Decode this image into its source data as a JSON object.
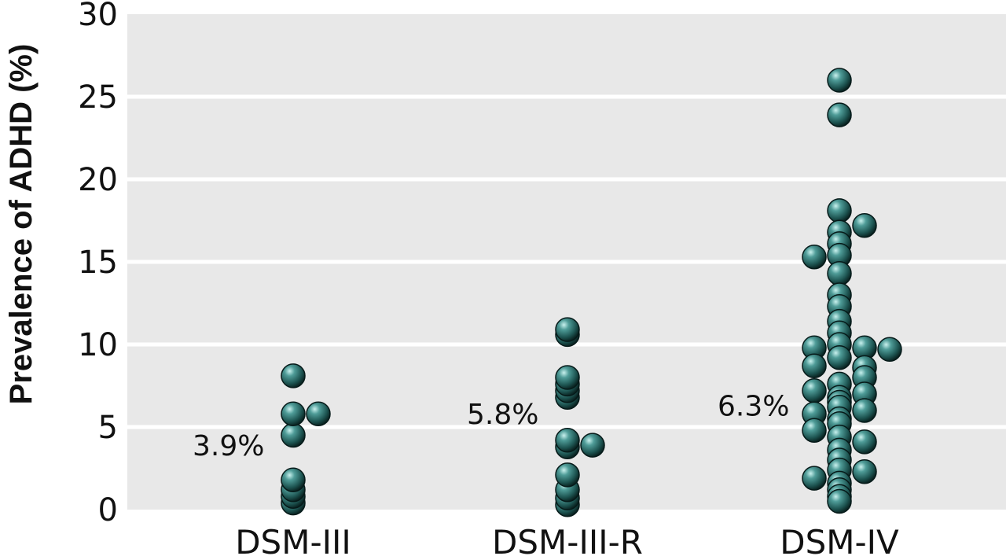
{
  "chart_data": {
    "type": "scatter",
    "title": "",
    "xlabel": "",
    "ylabel": "Prevalence of ADHD (%)",
    "ylim": [
      0,
      30
    ],
    "yticks": [
      0,
      5,
      10,
      15,
      20,
      25,
      30
    ],
    "grid": true,
    "categories": [
      "DSM-III",
      "DSM-III-R",
      "DSM-IV"
    ],
    "series": [
      {
        "values": [
          0.4,
          0.8,
          1.2,
          1.8,
          4.5,
          5.8,
          5.8,
          8.1
        ],
        "offsets": [
          0,
          0,
          0,
          0,
          0,
          0,
          1,
          0
        ]
      },
      {
        "values": [
          0.3,
          0.7,
          1.2,
          2.1,
          3.8,
          4.2,
          3.9,
          6.8,
          7.2,
          7.6,
          8.0,
          10.6,
          10.9
        ],
        "offsets": [
          0,
          0,
          0,
          0,
          0,
          0,
          1,
          0,
          0,
          0,
          0,
          0,
          0
        ]
      },
      {
        "values": [
          26.0,
          23.9,
          18.1,
          17.2,
          16.8,
          16.1,
          15.4,
          15.3,
          14.3,
          13.0,
          12.3,
          11.4,
          10.7,
          10.0,
          9.8,
          9.8,
          9.7,
          9.2,
          8.7,
          8.6,
          8.0,
          7.6,
          7.2,
          7.0,
          6.8,
          6.5,
          6.2,
          6.0,
          5.8,
          5.5,
          5.2,
          4.8,
          4.4,
          4.1,
          3.6,
          3.0,
          2.4,
          2.3,
          1.9,
          1.6,
          1.2,
          0.8,
          0.5
        ],
        "offsets": [
          0,
          0,
          0,
          1,
          0,
          0,
          0,
          -1,
          0,
          0,
          0,
          0,
          0,
          0,
          -1,
          1,
          2,
          0,
          -1,
          1,
          1,
          0,
          -1,
          1,
          0,
          0,
          0,
          1,
          -1,
          0,
          0,
          -1,
          0,
          1,
          0,
          0,
          0,
          1,
          -1,
          0,
          0,
          0,
          0
        ]
      }
    ],
    "annotations": [
      {
        "category": "DSM-III",
        "text": "3.9%",
        "value": 3.9
      },
      {
        "category": "DSM-III-R",
        "text": "5.8%",
        "value": 5.8
      },
      {
        "category": "DSM-IV",
        "text": "6.3%",
        "value": 6.3
      }
    ],
    "point_color": "#2a6b68"
  }
}
